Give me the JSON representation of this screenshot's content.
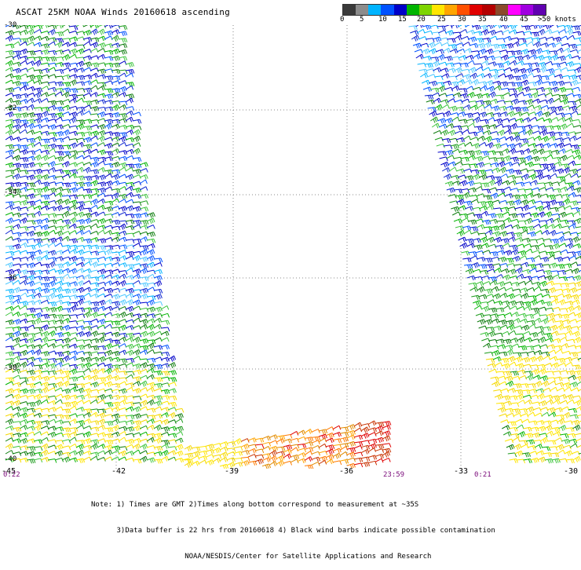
{
  "title": "ASCAT 25KM NOAA Winds 20160618 ascending",
  "colorbar": {
    "colors": [
      "#3a3a3a",
      "#8c8c8c",
      "#00b4ff",
      "#0052ff",
      "#0000c8",
      "#00b400",
      "#7ed400",
      "#ffe600",
      "#ffa500",
      "#ff5000",
      "#e00000",
      "#b40000",
      "#8b4a2b",
      "#ff00ff",
      "#a000e0",
      "#6000b0"
    ],
    "labels": [
      "0",
      "5",
      "10",
      "15",
      "20",
      "25",
      "30",
      "35",
      "40",
      "45",
      ">50 knots"
    ]
  },
  "lat_labels": [
    "-30",
    "-32",
    "-34",
    "-36",
    "-38",
    "-40"
  ],
  "lon_labels": [
    "-45",
    "-42",
    "-39",
    "-36",
    "-33",
    "-30"
  ],
  "time_labels": [
    "0:22",
    "23:59",
    "0:21"
  ],
  "notes": [
    "Note: 1) Times are GMT 2)Times along bottom correspond to measurement at ~35S",
    "      3)Data buffer is 22 hrs from 20160618 4) Black wind barbs indicate possible contamination",
    "                      NOAA/NESDIS/Center for Satellite Applications and Research"
  ]
}
